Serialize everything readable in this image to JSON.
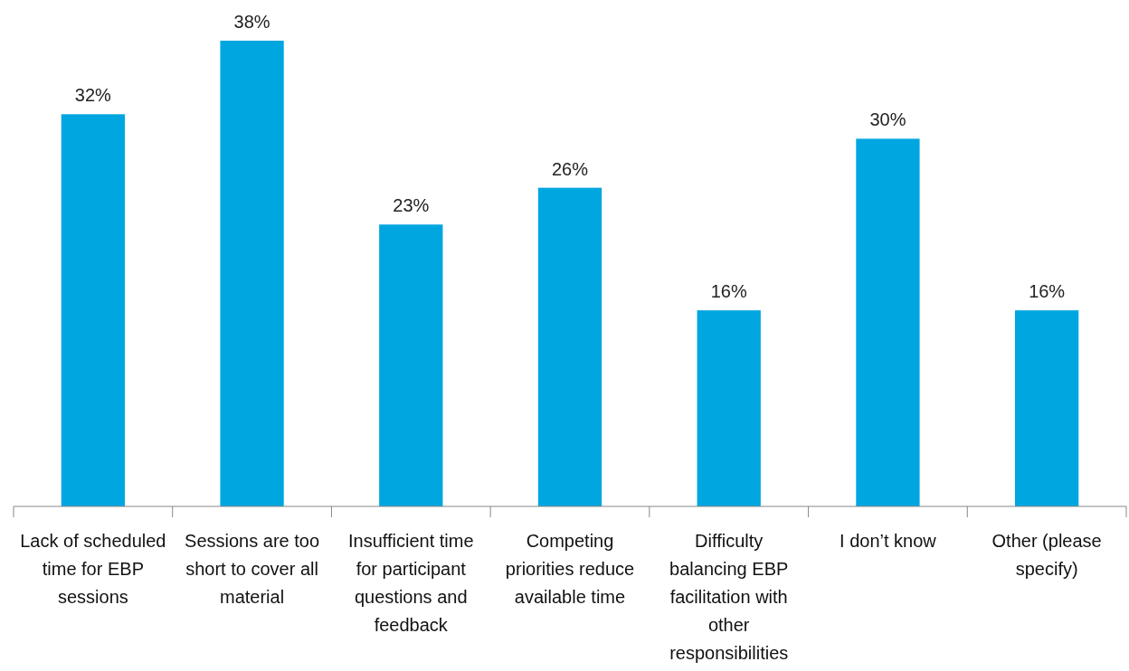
{
  "chart_data": {
    "type": "bar",
    "categories": [
      "Lack of scheduled time for EBP sessions",
      "Sessions are too short to cover all material",
      "Insufficient time for participant questions and feedback",
      "Competing priorities reduce available time",
      "Difficulty balancing EBP facilitation with other responsibilities",
      "I don’t know",
      "Other (please specify)"
    ],
    "values": [
      32,
      38,
      23,
      26,
      16,
      30,
      16
    ],
    "value_labels": [
      "32%",
      "38%",
      "23%",
      "26%",
      "16%",
      "30%",
      "16%"
    ],
    "color": "#00a6e0"
  }
}
